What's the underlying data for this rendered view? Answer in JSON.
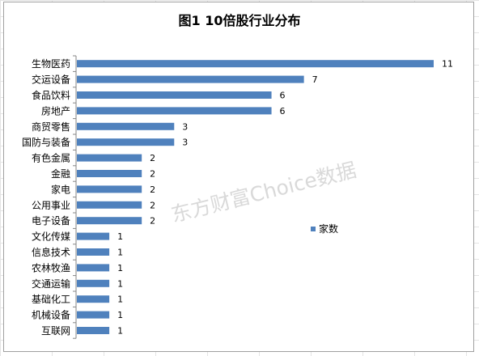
{
  "chart_data": {
    "type": "bar",
    "orientation": "horizontal",
    "title": "图1 10倍股行业分布",
    "categories": [
      "生物医药",
      "交运设备",
      "食品饮料",
      "房地产",
      "商贸零售",
      "国防与装备",
      "有色金属",
      "金融",
      "家电",
      "公用事业",
      "电子设备",
      "文化传媒",
      "信息技术",
      "农林牧渔",
      "交通运输",
      "基础化工",
      "机械设备",
      "互联网"
    ],
    "series": [
      {
        "name": "家数",
        "values": [
          11,
          7,
          6,
          6,
          3,
          3,
          2,
          2,
          2,
          2,
          2,
          1,
          1,
          1,
          1,
          1,
          1,
          1
        ]
      }
    ],
    "xlim": [
      0,
      11
    ],
    "grid": false,
    "legend_position": "right",
    "data_labels": true,
    "bar_color": "#4f81bd"
  },
  "watermark": {
    "text": "东方财富Choice数据"
  }
}
